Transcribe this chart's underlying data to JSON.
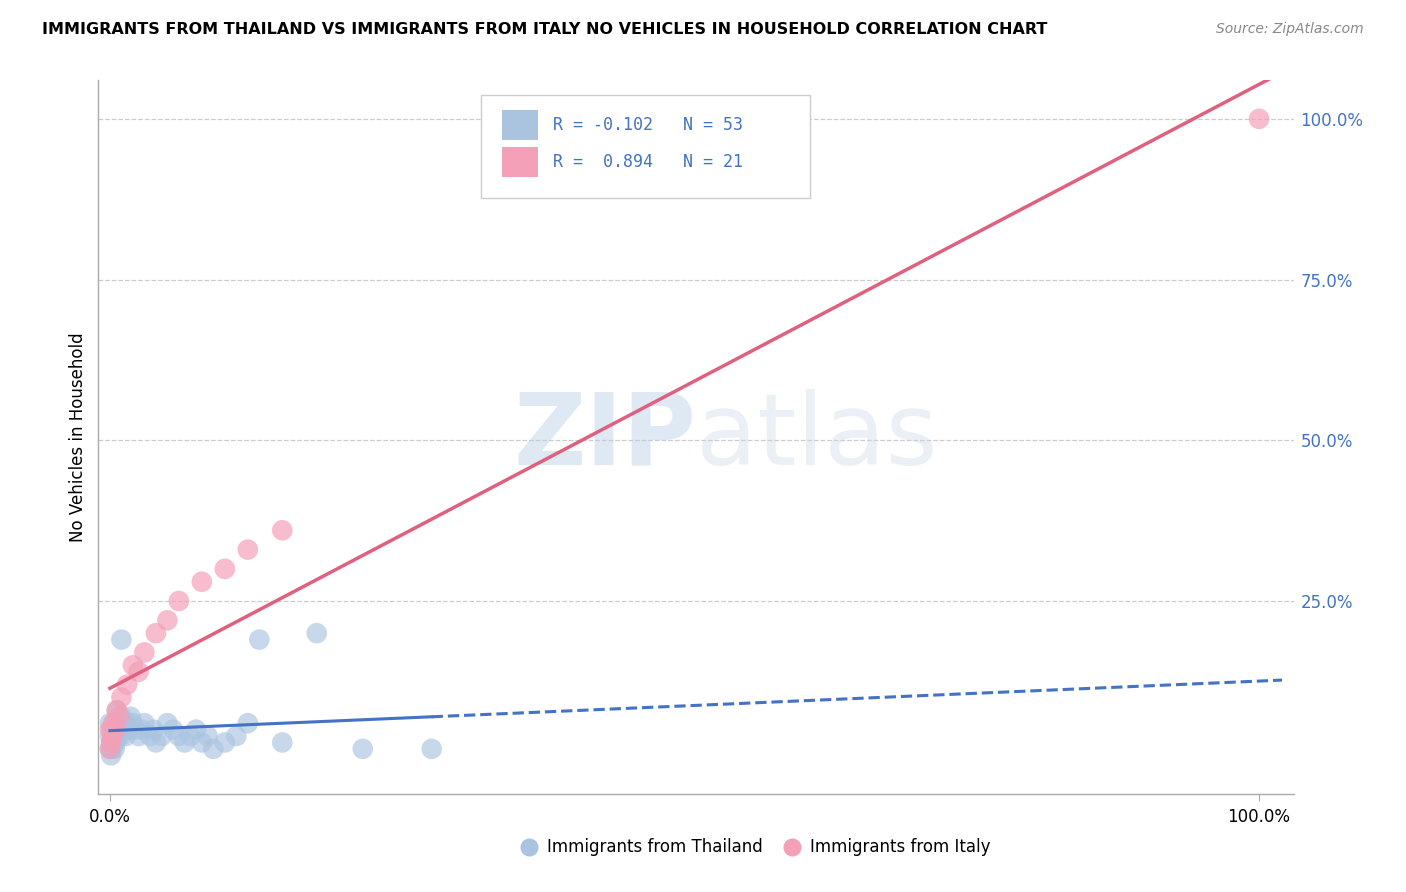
{
  "title": "IMMIGRANTS FROM THAILAND VS IMMIGRANTS FROM ITALY NO VEHICLES IN HOUSEHOLD CORRELATION CHART",
  "source": "Source: ZipAtlas.com",
  "ylabel": "No Vehicles in Household",
  "thailand_scatter_color": "#aac4e0",
  "italy_scatter_color": "#f4a0b8",
  "thailand_line_color": "#4472c4",
  "italy_line_color": "#e06080",
  "background_color": "#ffffff",
  "grid_color": "#cccccc",
  "watermark_zip": "ZIP",
  "watermark_atlas": "atlas",
  "R_thailand": -0.102,
  "N_thailand": 53,
  "R_italy": 0.894,
  "N_italy": 21,
  "xmin": -0.01,
  "xmax": 1.03,
  "ymin": -0.05,
  "ymax": 1.06,
  "legend_label_thailand": "Immigrants from Thailand",
  "legend_label_italy": "Immigrants from Italy",
  "thai_x": [
    0.0,
    0.0,
    0.0,
    0.001,
    0.001,
    0.002,
    0.002,
    0.003,
    0.003,
    0.004,
    0.004,
    0.005,
    0.005,
    0.006,
    0.006,
    0.007,
    0.008,
    0.009,
    0.01,
    0.01,
    0.012,
    0.013,
    0.014,
    0.015,
    0.017,
    0.018,
    0.02,
    0.022,
    0.025,
    0.028,
    0.03,
    0.035,
    0.038,
    0.04,
    0.045,
    0.05,
    0.055,
    0.06,
    0.065,
    0.07,
    0.075,
    0.08,
    0.085,
    0.09,
    0.1,
    0.11,
    0.12,
    0.13,
    0.15,
    0.18,
    0.22,
    0.28,
    0.01
  ],
  "thai_y": [
    0.02,
    0.04,
    0.06,
    0.01,
    0.03,
    0.02,
    0.05,
    0.03,
    0.045,
    0.02,
    0.06,
    0.03,
    0.05,
    0.04,
    0.08,
    0.05,
    0.06,
    0.04,
    0.05,
    0.07,
    0.06,
    0.05,
    0.04,
    0.06,
    0.05,
    0.07,
    0.06,
    0.05,
    0.04,
    0.05,
    0.06,
    0.04,
    0.05,
    0.03,
    0.04,
    0.06,
    0.05,
    0.04,
    0.03,
    0.04,
    0.05,
    0.03,
    0.04,
    0.02,
    0.03,
    0.04,
    0.06,
    0.19,
    0.03,
    0.2,
    0.02,
    0.02,
    0.19
  ],
  "italy_x": [
    0.0,
    0.0,
    0.001,
    0.002,
    0.003,
    0.005,
    0.006,
    0.008,
    0.01,
    0.015,
    0.02,
    0.025,
    0.03,
    0.04,
    0.05,
    0.06,
    0.08,
    0.1,
    0.12,
    0.15,
    1.0
  ],
  "italy_y": [
    0.02,
    0.05,
    0.03,
    0.04,
    0.06,
    0.05,
    0.08,
    0.07,
    0.1,
    0.12,
    0.15,
    0.14,
    0.17,
    0.2,
    0.22,
    0.25,
    0.28,
    0.3,
    0.33,
    0.36,
    1.0
  ]
}
